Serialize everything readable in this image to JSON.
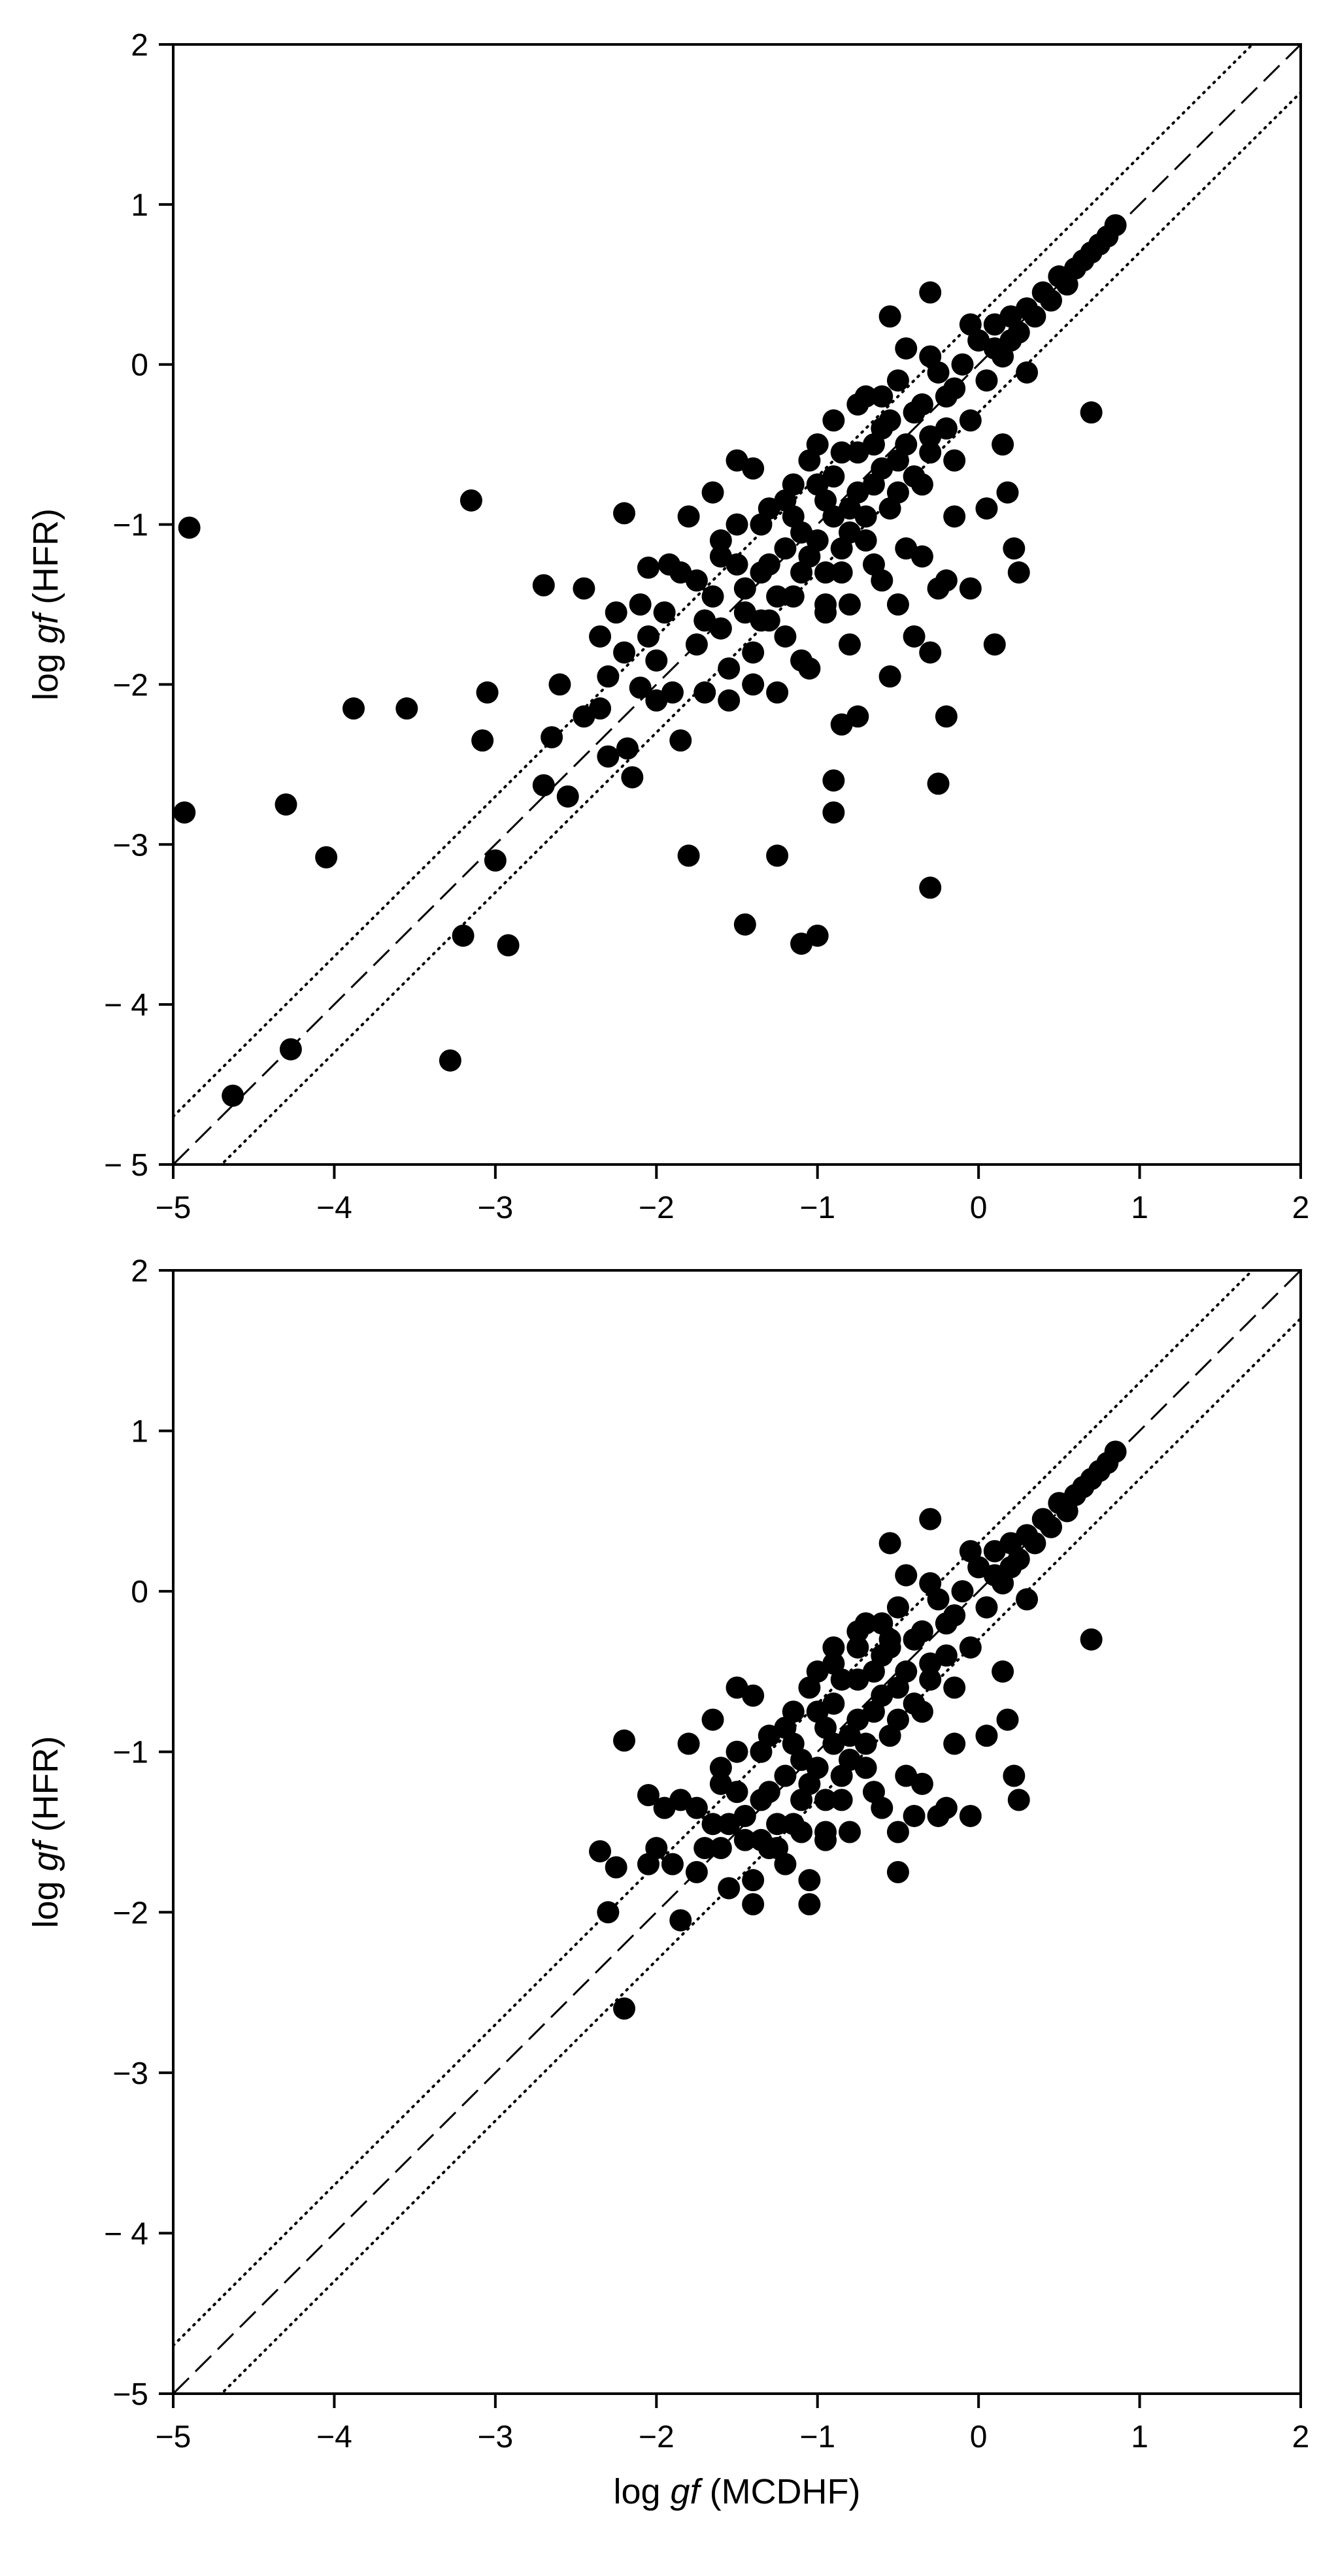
{
  "chart_data": [
    {
      "type": "scatter",
      "panel": "top",
      "xlabel": "",
      "ylabel_prefix": "log ",
      "ylabel_var": "gf",
      "ylabel_suffix": " (HFR)",
      "xlim": [
        -5,
        2
      ],
      "ylim": [
        -5,
        2
      ],
      "xticks": [
        -5,
        -4,
        -3,
        -2,
        -1,
        0,
        1,
        2
      ],
      "yticks": [
        -5,
        -4,
        -3,
        -2,
        -1,
        0,
        1,
        2
      ],
      "xtick_labels": [
        "−5",
        "−4",
        "−3",
        "−2",
        "−1",
        "0",
        "1",
        "2"
      ],
      "ytick_labels": [
        "− 5",
        "− 4",
        "−3",
        "−2",
        "−1",
        "0",
        "1",
        "2"
      ],
      "grid": false,
      "reference_lines": [
        {
          "style": "dashed",
          "slope": 1,
          "intercept": 0
        },
        {
          "style": "dotted",
          "slope": 1,
          "intercept": 0.3
        },
        {
          "style": "dotted",
          "slope": 1,
          "intercept": -0.3
        }
      ],
      "points": [
        [
          -4.9,
          -1.02
        ],
        [
          -4.93,
          -2.8
        ],
        [
          -4.3,
          -2.75
        ],
        [
          -4.05,
          -3.08
        ],
        [
          -3.88,
          -2.15
        ],
        [
          -3.55,
          -2.15
        ],
        [
          -4.63,
          -4.57
        ],
        [
          -4.27,
          -4.28
        ],
        [
          -3.15,
          -0.85
        ],
        [
          -3.2,
          -3.57
        ],
        [
          -3.28,
          -4.35
        ],
        [
          -3.05,
          -2.05
        ],
        [
          -3.08,
          -2.35
        ],
        [
          -3.0,
          -3.1
        ],
        [
          -2.92,
          -3.63
        ],
        [
          -2.7,
          -1.38
        ],
        [
          -2.7,
          -2.63
        ],
        [
          -2.6,
          -2.0
        ],
        [
          -2.55,
          -2.7
        ],
        [
          -2.65,
          -2.33
        ],
        [
          -2.45,
          -1.4
        ],
        [
          -2.45,
          -2.2
        ],
        [
          -2.35,
          -1.7
        ],
        [
          -2.35,
          -2.15
        ],
        [
          -2.3,
          -1.95
        ],
        [
          -2.3,
          -2.45
        ],
        [
          -2.25,
          -1.55
        ],
        [
          -2.2,
          -0.93
        ],
        [
          -2.2,
          -1.8
        ],
        [
          -2.18,
          -2.4
        ],
        [
          -2.1,
          -2.02
        ],
        [
          -2.15,
          -2.58
        ],
        [
          -2.05,
          -1.27
        ],
        [
          -2.0,
          -2.1
        ],
        [
          -1.95,
          -1.55
        ],
        [
          -1.92,
          -1.25
        ],
        [
          -1.85,
          -2.35
        ],
        [
          -1.8,
          -0.95
        ],
        [
          -1.75,
          -1.35
        ],
        [
          -1.7,
          -1.6
        ],
        [
          -1.65,
          -0.8
        ],
        [
          -1.6,
          -1.2
        ],
        [
          -1.55,
          -1.9
        ],
        [
          -1.5,
          -1.0
        ],
        [
          -1.45,
          -1.55
        ],
        [
          -1.4,
          -0.65
        ],
        [
          -1.4,
          -2.0
        ],
        [
          -1.35,
          -1.3
        ],
        [
          -1.3,
          -0.9
        ],
        [
          -1.25,
          -1.45
        ],
        [
          -1.2,
          -1.15
        ],
        [
          -1.2,
          -1.7
        ],
        [
          -1.15,
          -0.75
        ],
        [
          -1.1,
          -1.3
        ],
        [
          -1.05,
          -1.9
        ],
        [
          -1.0,
          -0.5
        ],
        [
          -1.0,
          -1.1
        ],
        [
          -0.95,
          -1.5
        ],
        [
          -0.9,
          -0.7
        ],
        [
          -0.9,
          -0.35
        ],
        [
          -0.85,
          -1.3
        ],
        [
          -0.8,
          -0.9
        ],
        [
          -0.8,
          -1.75
        ],
        [
          -0.75,
          -0.55
        ],
        [
          -0.7,
          -1.1
        ],
        [
          -0.7,
          -0.2
        ],
        [
          -0.65,
          -0.75
        ],
        [
          -0.6,
          -1.35
        ],
        [
          -0.6,
          -0.4
        ],
        [
          -0.55,
          -0.9
        ],
        [
          -0.5,
          -0.1
        ],
        [
          -0.5,
          -0.6
        ],
        [
          -0.45,
          -1.15
        ],
        [
          -0.4,
          -0.3
        ],
        [
          -0.35,
          -0.75
        ],
        [
          -0.3,
          0.05
        ],
        [
          -0.3,
          -0.45
        ],
        [
          -0.25,
          -1.4
        ],
        [
          -0.2,
          -0.2
        ],
        [
          -0.15,
          -0.6
        ],
        [
          -0.1,
          0.0
        ],
        [
          -0.05,
          -0.35
        ],
        [
          0.0,
          0.15
        ],
        [
          0.05,
          -0.1
        ],
        [
          0.1,
          0.25
        ],
        [
          0.15,
          0.05
        ],
        [
          0.2,
          0.3
        ],
        [
          0.25,
          0.2
        ],
        [
          0.3,
          0.35
        ],
        [
          0.35,
          0.3
        ],
        [
          0.4,
          0.45
        ],
        [
          0.45,
          0.4
        ],
        [
          0.5,
          0.55
        ],
        [
          0.55,
          0.5
        ],
        [
          0.6,
          0.6
        ],
        [
          0.65,
          0.65
        ],
        [
          0.7,
          0.7
        ],
        [
          0.75,
          0.75
        ],
        [
          0.8,
          0.8
        ],
        [
          0.85,
          0.87
        ],
        [
          0.7,
          -0.3
        ],
        [
          0.3,
          -0.05
        ],
        [
          0.22,
          -1.15
        ],
        [
          0.25,
          -1.3
        ],
        [
          0.15,
          -0.5
        ],
        [
          0.18,
          -0.8
        ],
        [
          0.1,
          -1.75
        ],
        [
          -0.05,
          -1.4
        ],
        [
          -0.2,
          -1.35
        ],
        [
          -0.3,
          -1.8
        ],
        [
          -0.2,
          -2.2
        ],
        [
          -0.25,
          -2.62
        ],
        [
          -0.3,
          -3.27
        ],
        [
          -0.9,
          -2.6
        ],
        [
          -0.9,
          -2.8
        ],
        [
          -0.85,
          -2.25
        ],
        [
          -1.0,
          -3.57
        ],
        [
          -1.1,
          -3.62
        ],
        [
          -1.25,
          -3.07
        ],
        [
          -1.45,
          -3.5
        ],
        [
          -1.8,
          -3.07
        ],
        [
          -0.75,
          -2.2
        ],
        [
          -0.55,
          -1.95
        ],
        [
          -1.6,
          -1.1
        ],
        [
          -1.5,
          -1.25
        ],
        [
          -1.3,
          -1.6
        ],
        [
          -1.15,
          -0.95
        ],
        [
          -1.05,
          -1.2
        ],
        [
          -0.95,
          -0.85
        ],
        [
          -0.85,
          -0.55
        ],
        [
          -0.75,
          -0.8
        ],
        [
          -0.65,
          -0.5
        ],
        [
          -0.55,
          -0.35
        ],
        [
          -0.45,
          -0.5
        ],
        [
          -0.35,
          -0.25
        ],
        [
          -0.25,
          -0.05
        ],
        [
          -0.15,
          -0.15
        ],
        [
          -0.55,
          0.3
        ],
        [
          -0.3,
          0.45
        ],
        [
          -0.45,
          0.1
        ],
        [
          -0.6,
          -0.2
        ],
        [
          -0.75,
          -0.25
        ],
        [
          -0.8,
          -1.05
        ],
        [
          -0.95,
          -1.3
        ],
        [
          -1.05,
          -0.6
        ],
        [
          -1.2,
          -0.85
        ],
        [
          -1.35,
          -1.0
        ],
        [
          -1.45,
          -1.4
        ],
        [
          -1.6,
          -1.65
        ],
        [
          -1.75,
          -1.75
        ],
        [
          -1.9,
          -2.05
        ],
        [
          -2.05,
          -1.7
        ],
        [
          -2.1,
          -1.5
        ],
        [
          -1.7,
          -2.05
        ],
        [
          -1.55,
          -2.1
        ],
        [
          -1.4,
          -1.8
        ],
        [
          -1.25,
          -2.05
        ],
        [
          -1.1,
          -1.85
        ],
        [
          -0.95,
          -1.55
        ],
        [
          -0.8,
          -1.5
        ],
        [
          -0.65,
          -1.25
        ],
        [
          -0.5,
          -1.5
        ],
        [
          -0.4,
          -1.7
        ],
        [
          -0.35,
          -1.2
        ],
        [
          -0.15,
          -0.95
        ],
        [
          0.05,
          -0.9
        ],
        [
          -0.05,
          0.25
        ],
        [
          0.1,
          0.1
        ],
        [
          -1.3,
          -1.25
        ],
        [
          -1.1,
          -1.05
        ],
        [
          -0.9,
          -0.95
        ],
        [
          -1.5,
          -0.6
        ],
        [
          -1.65,
          -1.45
        ],
        [
          -1.85,
          -1.3
        ],
        [
          -2.0,
          -1.85
        ],
        [
          -0.7,
          -0.95
        ],
        [
          -0.6,
          -0.65
        ],
        [
          -0.4,
          -0.7
        ],
        [
          -1.0,
          -0.75
        ],
        [
          -0.85,
          -1.15
        ],
        [
          -1.15,
          -1.45
        ],
        [
          -1.35,
          -1.6
        ],
        [
          -0.5,
          -0.8
        ],
        [
          -0.3,
          -0.55
        ],
        [
          -0.2,
          -0.4
        ],
        [
          0.2,
          0.15
        ]
      ]
    },
    {
      "type": "scatter",
      "panel": "bottom",
      "xlabel_prefix": "log ",
      "xlabel_var": "gf",
      "xlabel_suffix": " (MCDHF)",
      "ylabel_prefix": "log ",
      "ylabel_var": "gf",
      "ylabel_suffix": " (HFR)",
      "xlim": [
        -5,
        2
      ],
      "ylim": [
        -5,
        2
      ],
      "xticks": [
        -5,
        -4,
        -3,
        -2,
        -1,
        0,
        1,
        2
      ],
      "yticks": [
        -5,
        -4,
        -3,
        -2,
        -1,
        0,
        1,
        2
      ],
      "xtick_labels": [
        "−5",
        "−4",
        "−3",
        "−2",
        "−1",
        "0",
        "1",
        "2"
      ],
      "ytick_labels": [
        "−5",
        "− 4",
        "−3",
        "−2",
        "−1",
        "0",
        "1",
        "2"
      ],
      "grid": false,
      "reference_lines": [
        {
          "style": "dashed",
          "slope": 1,
          "intercept": 0
        },
        {
          "style": "dotted",
          "slope": 1,
          "intercept": 0.3
        },
        {
          "style": "dotted",
          "slope": 1,
          "intercept": -0.3
        }
      ],
      "points": [
        [
          -2.2,
          -2.6
        ],
        [
          -2.35,
          -1.62
        ],
        [
          -2.3,
          -2.0
        ],
        [
          -2.25,
          -1.72
        ],
        [
          -2.2,
          -0.93
        ],
        [
          -1.85,
          -2.05
        ],
        [
          -2.05,
          -1.27
        ],
        [
          -2.0,
          -1.6
        ],
        [
          -1.95,
          -1.35
        ],
        [
          -1.9,
          -1.7
        ],
        [
          -1.8,
          -0.95
        ],
        [
          -1.75,
          -1.35
        ],
        [
          -1.7,
          -1.6
        ],
        [
          -1.65,
          -0.8
        ],
        [
          -1.6,
          -1.2
        ],
        [
          -1.55,
          -1.85
        ],
        [
          -1.5,
          -1.0
        ],
        [
          -1.45,
          -1.55
        ],
        [
          -1.4,
          -0.65
        ],
        [
          -1.4,
          -1.95
        ],
        [
          -1.35,
          -1.3
        ],
        [
          -1.3,
          -0.9
        ],
        [
          -1.25,
          -1.45
        ],
        [
          -1.2,
          -1.15
        ],
        [
          -1.2,
          -1.7
        ],
        [
          -1.15,
          -0.75
        ],
        [
          -1.1,
          -1.3
        ],
        [
          -1.05,
          -1.95
        ],
        [
          -1.0,
          -0.5
        ],
        [
          -1.0,
          -1.1
        ],
        [
          -0.95,
          -1.5
        ],
        [
          -0.9,
          -0.7
        ],
        [
          -0.9,
          -0.35
        ],
        [
          -0.85,
          -1.3
        ],
        [
          -0.8,
          -0.9
        ],
        [
          -0.75,
          -0.55
        ],
        [
          -0.7,
          -1.1
        ],
        [
          -0.7,
          -0.2
        ],
        [
          -0.65,
          -0.75
        ],
        [
          -0.6,
          -1.35
        ],
        [
          -0.6,
          -0.4
        ],
        [
          -0.55,
          -0.9
        ],
        [
          -0.5,
          -0.1
        ],
        [
          -0.5,
          -0.6
        ],
        [
          -0.45,
          -1.15
        ],
        [
          -0.4,
          -0.3
        ],
        [
          -0.35,
          -0.75
        ],
        [
          -0.3,
          0.05
        ],
        [
          -0.3,
          -0.45
        ],
        [
          -0.25,
          -1.4
        ],
        [
          -0.2,
          -0.2
        ],
        [
          -0.15,
          -0.6
        ],
        [
          -0.1,
          0.0
        ],
        [
          -0.05,
          -0.35
        ],
        [
          0.0,
          0.15
        ],
        [
          0.05,
          -0.1
        ],
        [
          0.1,
          0.25
        ],
        [
          0.15,
          0.05
        ],
        [
          0.2,
          0.3
        ],
        [
          0.25,
          0.2
        ],
        [
          0.3,
          0.35
        ],
        [
          0.35,
          0.3
        ],
        [
          0.4,
          0.45
        ],
        [
          0.45,
          0.4
        ],
        [
          0.5,
          0.55
        ],
        [
          0.55,
          0.5
        ],
        [
          0.6,
          0.6
        ],
        [
          0.65,
          0.65
        ],
        [
          0.7,
          0.7
        ],
        [
          0.75,
          0.75
        ],
        [
          0.8,
          0.8
        ],
        [
          0.85,
          0.87
        ],
        [
          0.7,
          -0.3
        ],
        [
          0.3,
          -0.05
        ],
        [
          0.22,
          -1.15
        ],
        [
          0.25,
          -1.3
        ],
        [
          0.15,
          -0.5
        ],
        [
          0.18,
          -0.8
        ],
        [
          -0.05,
          -1.4
        ],
        [
          -0.2,
          -1.35
        ],
        [
          -0.5,
          -1.75
        ],
        [
          -0.55,
          -0.3
        ],
        [
          -0.3,
          0.45
        ],
        [
          -0.55,
          0.3
        ],
        [
          -1.05,
          -1.8
        ],
        [
          -1.6,
          -1.1
        ],
        [
          -1.5,
          -1.25
        ],
        [
          -1.3,
          -1.6
        ],
        [
          -1.15,
          -0.95
        ],
        [
          -1.05,
          -1.2
        ],
        [
          -0.95,
          -0.85
        ],
        [
          -0.85,
          -0.55
        ],
        [
          -0.75,
          -0.8
        ],
        [
          -0.65,
          -0.5
        ],
        [
          -0.55,
          -0.35
        ],
        [
          -0.45,
          -0.5
        ],
        [
          -0.35,
          -0.25
        ],
        [
          -0.25,
          -0.05
        ],
        [
          -0.15,
          -0.15
        ],
        [
          -0.45,
          0.1
        ],
        [
          -0.6,
          -0.2
        ],
        [
          -0.75,
          -0.25
        ],
        [
          -0.8,
          -1.05
        ],
        [
          -0.95,
          -1.3
        ],
        [
          -1.05,
          -0.6
        ],
        [
          -1.2,
          -0.85
        ],
        [
          -1.35,
          -1.0
        ],
        [
          -1.45,
          -1.4
        ],
        [
          -1.6,
          -1.6
        ],
        [
          -1.75,
          -1.75
        ],
        [
          -2.05,
          -1.7
        ],
        [
          -1.55,
          -1.45
        ],
        [
          -1.4,
          -1.8
        ],
        [
          -1.25,
          -1.6
        ],
        [
          -1.1,
          -1.5
        ],
        [
          -0.95,
          -1.55
        ],
        [
          -0.8,
          -1.5
        ],
        [
          -0.65,
          -1.25
        ],
        [
          -0.5,
          -1.5
        ],
        [
          -0.4,
          -1.4
        ],
        [
          -0.35,
          -1.2
        ],
        [
          -0.15,
          -0.95
        ],
        [
          0.05,
          -0.9
        ],
        [
          -0.05,
          0.25
        ],
        [
          0.1,
          0.1
        ],
        [
          -1.3,
          -1.25
        ],
        [
          -1.1,
          -1.05
        ],
        [
          -0.9,
          -0.95
        ],
        [
          -1.5,
          -0.6
        ],
        [
          -1.65,
          -1.45
        ],
        [
          -1.85,
          -1.3
        ],
        [
          -0.7,
          -0.95
        ],
        [
          -0.6,
          -0.65
        ],
        [
          -0.4,
          -0.7
        ],
        [
          -1.0,
          -0.75
        ],
        [
          -0.85,
          -1.15
        ],
        [
          -1.15,
          -1.45
        ],
        [
          -1.35,
          -1.55
        ],
        [
          -0.5,
          -0.8
        ],
        [
          -0.3,
          -0.55
        ],
        [
          -0.2,
          -0.4
        ],
        [
          0.2,
          0.15
        ],
        [
          -0.9,
          -0.45
        ],
        [
          -0.75,
          -0.35
        ]
      ]
    }
  ]
}
